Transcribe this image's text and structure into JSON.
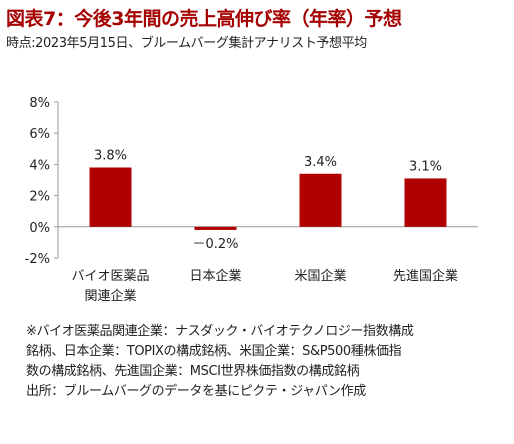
{
  "header": {
    "title": "図表7：今後3年間の売上高伸び率（年率）予想",
    "subtitle": "時点:2023年5月15日、ブルームバーグ集計アナリスト予想平均"
  },
  "chart_data": {
    "type": "bar",
    "categories": [
      [
        "バイオ医薬品",
        "関連企業"
      ],
      [
        "日本企業"
      ],
      [
        "米国企業"
      ],
      [
        "先進国企業"
      ]
    ],
    "values": [
      3.8,
      -0.2,
      3.4,
      3.1
    ],
    "value_labels": [
      "3.8%",
      "－0.2%",
      "3.4%",
      "3.1%"
    ],
    "ylim": [
      -2,
      8
    ],
    "yticks": [
      -2,
      0,
      2,
      4,
      6,
      8
    ],
    "ytick_labels": [
      "-2%",
      "0%",
      "2%",
      "4%",
      "6%",
      "8%"
    ],
    "bar_color": "#b00000",
    "grid": false,
    "legend": "none"
  },
  "notes": [
    "※バイオ医薬品関連企業：ナスダック・バイオテクノロジー指数構成",
    "銘柄、日本企業：TOPIXの構成銘柄、米国企業：S&P500種株価指",
    "数の構成銘柄、先進国企業：MSCI世界株価指数の構成銘柄",
    "出所：ブルームバーグのデータを基にピクテ・ジャパン作成"
  ]
}
